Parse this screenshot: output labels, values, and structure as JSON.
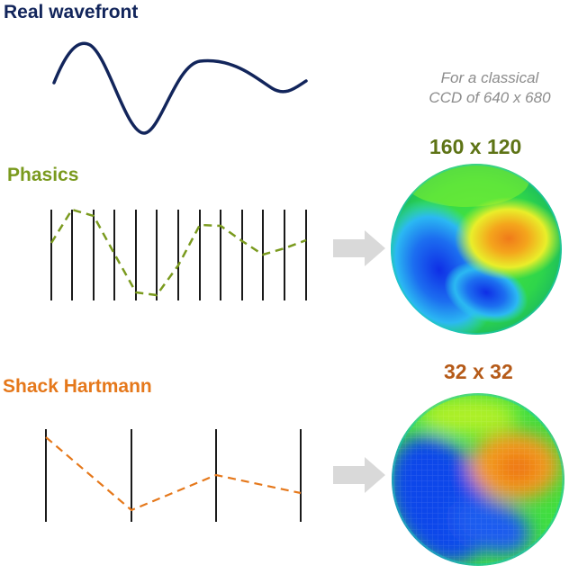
{
  "title": "Real wavefront",
  "note_line1": "For a classical",
  "note_line2": "CCD of 640 x 680",
  "phasics": {
    "label": "Phasics",
    "resolution": "160 x 120"
  },
  "shack_hartmann": {
    "label": "Shack Hartmann",
    "resolution": "32 x 32"
  },
  "colors": {
    "title": "#12255b",
    "wave": "#12255b",
    "phasics": "#7a9a1e",
    "shack_hartmann": "#e5781b",
    "arrow": "#d9d9d9"
  }
}
